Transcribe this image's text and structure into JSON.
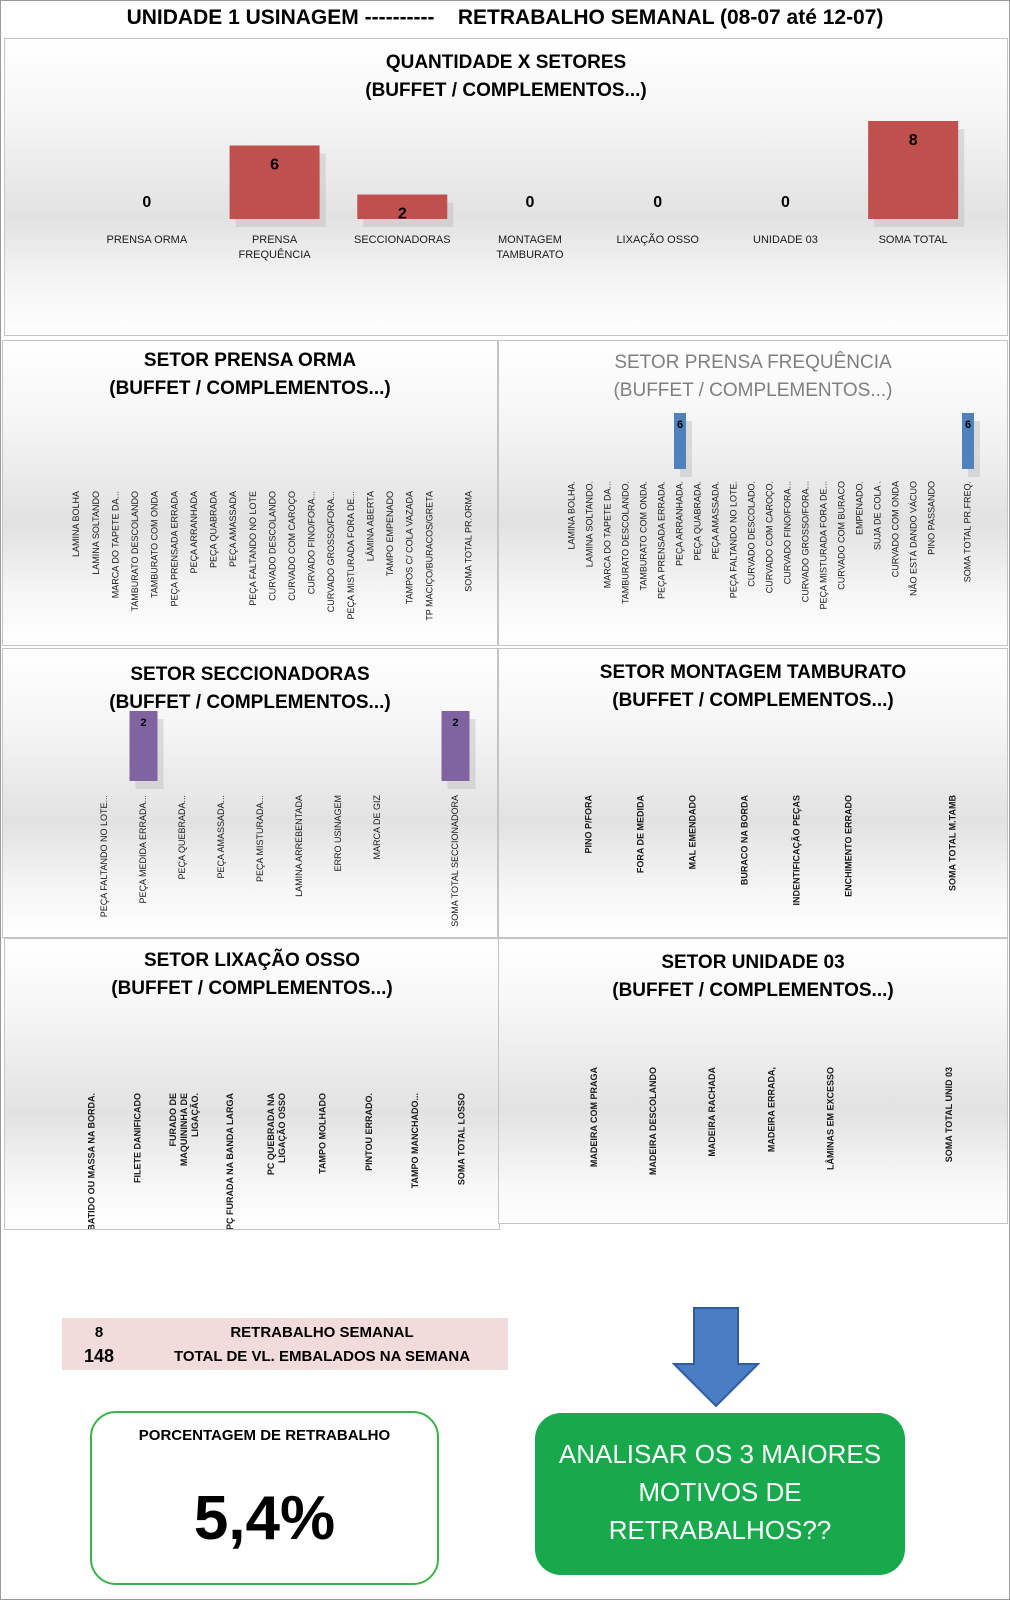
{
  "header": {
    "title": "UNIDADE 1 USINAGEM ----------    RETRABALHO SEMANAL (08-07 até 12-07)"
  },
  "colors": {
    "red": "#c0504d",
    "blue": "#4f81bd",
    "purple": "#8064a2",
    "green_box": "#17a94b",
    "pink_band": "#f2dcdb"
  },
  "chart_data": [
    {
      "id": "setores",
      "type": "bar",
      "title_lines": [
        "QUANTIDADE X SETORES",
        "(BUFFET / COMPLEMENTOS...)"
      ],
      "categories": [
        "PRENSA ORMA",
        "PRENSA FREQUÊNCIA",
        "SECCIONADORAS",
        "MONTAGEM TAMBURATO",
        "LIXAÇÃO OSSO",
        "UNIDADE 03",
        "SOMA TOTAL"
      ],
      "values": [
        0,
        6,
        2,
        0,
        0,
        0,
        8
      ],
      "color": "#c0504d",
      "ylim": [
        0,
        8
      ]
    },
    {
      "id": "prensa_orma",
      "type": "bar",
      "title_lines": [
        "SETOR PRENSA ORMA",
        "(BUFFET / COMPLEMENTOS...)"
      ],
      "categories": [
        "LAMINA BOLHA",
        "LAMINA SOLTANDO",
        "MARCA DO TAPETE DA...",
        "TAMBURATO DESCOLANDO",
        "TAMBURATO COM ONDA",
        "PEÇA PRENSADA ERRADA",
        "PEÇA ARRANHADA",
        "PEÇA QUABRADA",
        "PEÇA AMASSADA",
        "PEÇA FALTANDO NO LOTE",
        "CURVADO DESCOLANDO",
        "CURVADO COM CAROÇO",
        "CURVADO FINO/FORA...",
        "CURVADO GROSSO/FORA...",
        "PEÇA MISTURADA FORA DE...",
        "LÂMINA ABERTA",
        "TAMPO EMPENADO",
        "TAMPOS C/ COLA VAZADA",
        "TP MACIÇO/BURACOS/GRETA",
        "",
        "SOMA TOTAL PR.ORMA"
      ],
      "values": [
        null,
        null,
        null,
        null,
        null,
        null,
        null,
        null,
        null,
        null,
        null,
        null,
        null,
        null,
        null,
        null,
        null,
        null,
        null,
        null,
        null
      ],
      "color": "#c0504d",
      "ylim": [
        0,
        6
      ]
    },
    {
      "id": "prensa_freq",
      "type": "bar",
      "title_lines": [
        "SETOR PRENSA FREQUÊNCIA",
        "(BUFFET / COMPLEMENTOS...)"
      ],
      "categories": [
        "LAMINA BOLHA.",
        "LAMINA SOLTANDO.",
        "MARCA DO TAPETE DA...",
        "TAMBURATO DESCOLANDO.",
        "TAMBURATO COM ONDA.",
        "PEÇA PRENSADA ERRADA.",
        "PEÇA ARRANHADA.",
        "PEÇA QUABRADA.",
        "PEÇA AMASSADA.",
        "PEÇA FALTANDO NO LOTE.",
        "CURVADO DESCOLADO.",
        "CURVADO COM CAROÇO.",
        "CURVADO FINO/FORA...",
        "CURVADO GROSSO/FORA...",
        "PEÇA MISTURADA FORA DE...",
        "CURVADO COM BURACO",
        "EMPENADO.",
        "SUJA DE COLA .",
        "CURVADO COM ONDA",
        "NÃO ESTÁ DANDO VÁCUO",
        "PINO PASSANDO",
        "",
        "SOMA TOTAL PR.FREQ."
      ],
      "values": [
        null,
        null,
        null,
        null,
        null,
        null,
        6,
        null,
        null,
        null,
        null,
        null,
        null,
        null,
        null,
        null,
        null,
        null,
        null,
        null,
        null,
        null,
        6
      ],
      "color": "#4f81bd",
      "ylim": [
        0,
        6
      ]
    },
    {
      "id": "seccionadoras",
      "type": "bar",
      "title_lines": [
        "SETOR SECCIONADORAS",
        "(BUFFET / COMPLEMENTOS...)"
      ],
      "categories": [
        "PEÇA FALTANDO NO LOTE...",
        "PEÇA MEDIDA ERRADA...",
        "PEÇA QUEBRADA...",
        "PEÇA AMASSADA...",
        "PEÇA MISTURADA...",
        "LAMINA ARREBENTADA",
        "ERRO USINAGEM",
        "MARCA DE GIZ",
        "",
        "SOMA TOTAL SECCIONADORA"
      ],
      "values": [
        null,
        2,
        null,
        null,
        null,
        null,
        null,
        null,
        null,
        2
      ],
      "color": "#8064a2",
      "ylim": [
        0,
        2
      ]
    },
    {
      "id": "montagem",
      "type": "bar",
      "title_lines": [
        "SETOR MONTAGEM TAMBURATO",
        "(BUFFET / COMPLEMENTOS...)"
      ],
      "categories": [
        "PINO P/FORA",
        "FORA DE MEDIDA",
        "MAL EMENDADO",
        "BURACO NA BORDA",
        "INDENTIFICAÇÃO PEÇAS",
        "ENCHIMENTO ERRADO",
        "",
        "SOMA TOTAL M.TAMB"
      ],
      "values": [
        null,
        null,
        null,
        null,
        null,
        null,
        null,
        null
      ],
      "color": "#c0504d",
      "ylim": [
        0,
        1
      ]
    },
    {
      "id": "lixacao",
      "type": "bar",
      "title_lines": [
        "SETOR LIXAÇÃO OSSO",
        "(BUFFET / COMPLEMENTOS...)"
      ],
      "categories": [
        "BATIDO OU MASSA NA BORDA.",
        "FILETE DANIFICADO",
        "FURADO DE MAQUININHA DE LIGAÇÃO.",
        "PÇ FURADA NA BANDA LARGA",
        "PC QUEBRADA NA LIGAÇÃO OSSO",
        "TAMPO MOLHADO",
        "PINTOU ERRADO.",
        "TAMPO MANCHADO...",
        "SOMA TOTAL LOSSO"
      ],
      "values": [
        null,
        null,
        null,
        null,
        null,
        null,
        null,
        null,
        null
      ],
      "color": "#c0504d",
      "ylim": [
        0,
        1
      ]
    },
    {
      "id": "unidade03",
      "type": "bar",
      "title_lines": [
        "SETOR UNIDADE 03",
        "(BUFFET / COMPLEMENTOS...)"
      ],
      "categories": [
        "MADEIRA COM PRAGA",
        "MADEIRA DESCOLANDO",
        "MADEIRA RACHADA",
        "MADEIRA ERRADA,",
        "LÂMINAS EM EXCESSO",
        "",
        "SOMA TOTAL UNID 03"
      ],
      "values": [
        null,
        null,
        null,
        null,
        null,
        null,
        null
      ],
      "color": "#c0504d",
      "ylim": [
        0,
        1
      ]
    }
  ],
  "summary": {
    "rows": [
      {
        "value": "8",
        "label": "RETRABALHO SEMANAL"
      },
      {
        "value": "148",
        "label": "TOTAL DE VL. EMBALADOS NA SEMANA"
      }
    ]
  },
  "percent_box": {
    "label": "PORCENTAGEM DE RETRABALHO",
    "value": "5,4%"
  },
  "callout": {
    "lines": [
      "ANALISAR OS 3 MAIORES",
      "MOTIVOS DE",
      "RETRABALHOS??"
    ]
  }
}
